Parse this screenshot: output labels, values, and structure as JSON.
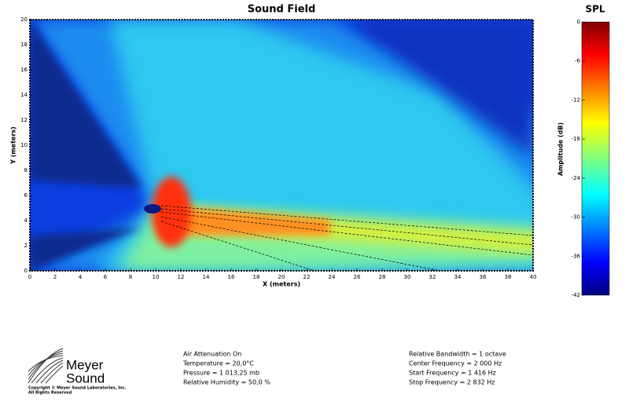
{
  "chart_data": {
    "type": "heatmap",
    "title": "Sound Field",
    "xlabel": "X (meters)",
    "ylabel": "Y (meters)",
    "xlim": [
      0,
      40
    ],
    "ylim": [
      0,
      20
    ],
    "xticks": [
      0,
      2,
      4,
      6,
      8,
      10,
      12,
      14,
      16,
      18,
      20,
      22,
      24,
      26,
      28,
      30,
      32,
      34,
      36,
      38,
      40
    ],
    "yticks": [
      0,
      2,
      4,
      6,
      8,
      10,
      12,
      14,
      16,
      18,
      20
    ],
    "colorbar": {
      "title": "SPL",
      "label": "Amplitude (dB)",
      "lim": [
        -42,
        0
      ],
      "ticks": [
        0,
        -6,
        -12,
        -18,
        -24,
        -30,
        -36,
        -42
      ]
    }
  },
  "footer": {
    "logo": [
      "Meyer",
      "Sound"
    ],
    "copyright": [
      "Copyright © Meyer Sound Laboratories, Inc.",
      "All Rights Reserved"
    ],
    "left": [
      "Air Attenuation On",
      "Temperature = 20,0°C",
      "Pressure = 1 013,25  mb",
      "Relative Humidity = 50,0 %"
    ],
    "right": [
      "Relative Bandwidth = 1 octave",
      "Center Frequency = 2 000 Hz",
      "Start Frequency = 1 416 Hz",
      "Stop Frequency = 2 832 Hz"
    ]
  }
}
